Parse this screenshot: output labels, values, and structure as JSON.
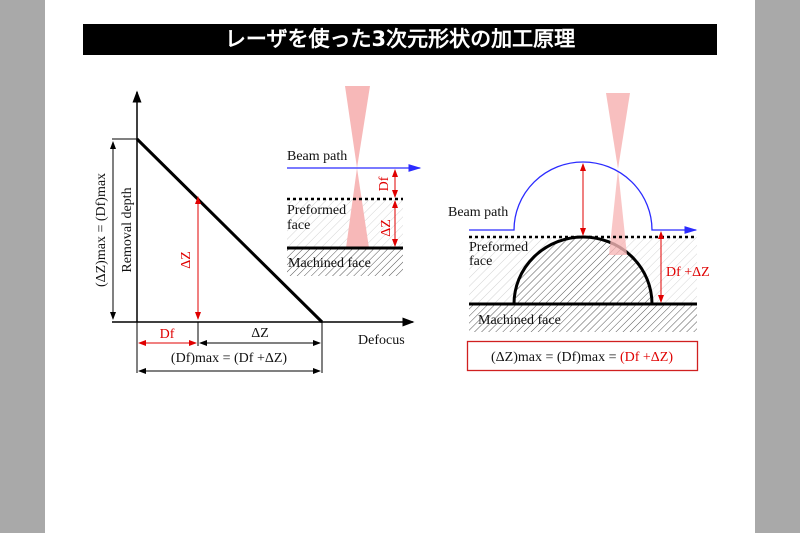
{
  "title": "レーザを使った3次元形状の加工原理",
  "colors": {
    "beam_path": "#2b2bff",
    "dimension": "#e00000",
    "beam_cone": "#f7b8b8",
    "axis": "#000000"
  },
  "left_graph": {
    "y_label": "Removal depth",
    "y_max_label": "(ΔZ)max = (Df)max",
    "x_label": "Defocus",
    "dz_label": "ΔZ",
    "df_label": "Df",
    "dz_bottom_label": "ΔZ",
    "dfmax_label": "(Df)max = (Df +ΔZ)"
  },
  "inset": {
    "beam_path": "Beam path",
    "preformed": [
      "Preformed",
      "face"
    ],
    "machined": "Machined face",
    "df": "Df",
    "dz": "ΔZ"
  },
  "right_diagram": {
    "beam_path": "Beam path",
    "preformed": [
      "Preformed",
      "face"
    ],
    "machined": "Machined face",
    "height_label": "Df +ΔZ",
    "formula_black": "(ΔZ)max = (Df)max = ",
    "formula_red": "(Df +ΔZ)"
  }
}
